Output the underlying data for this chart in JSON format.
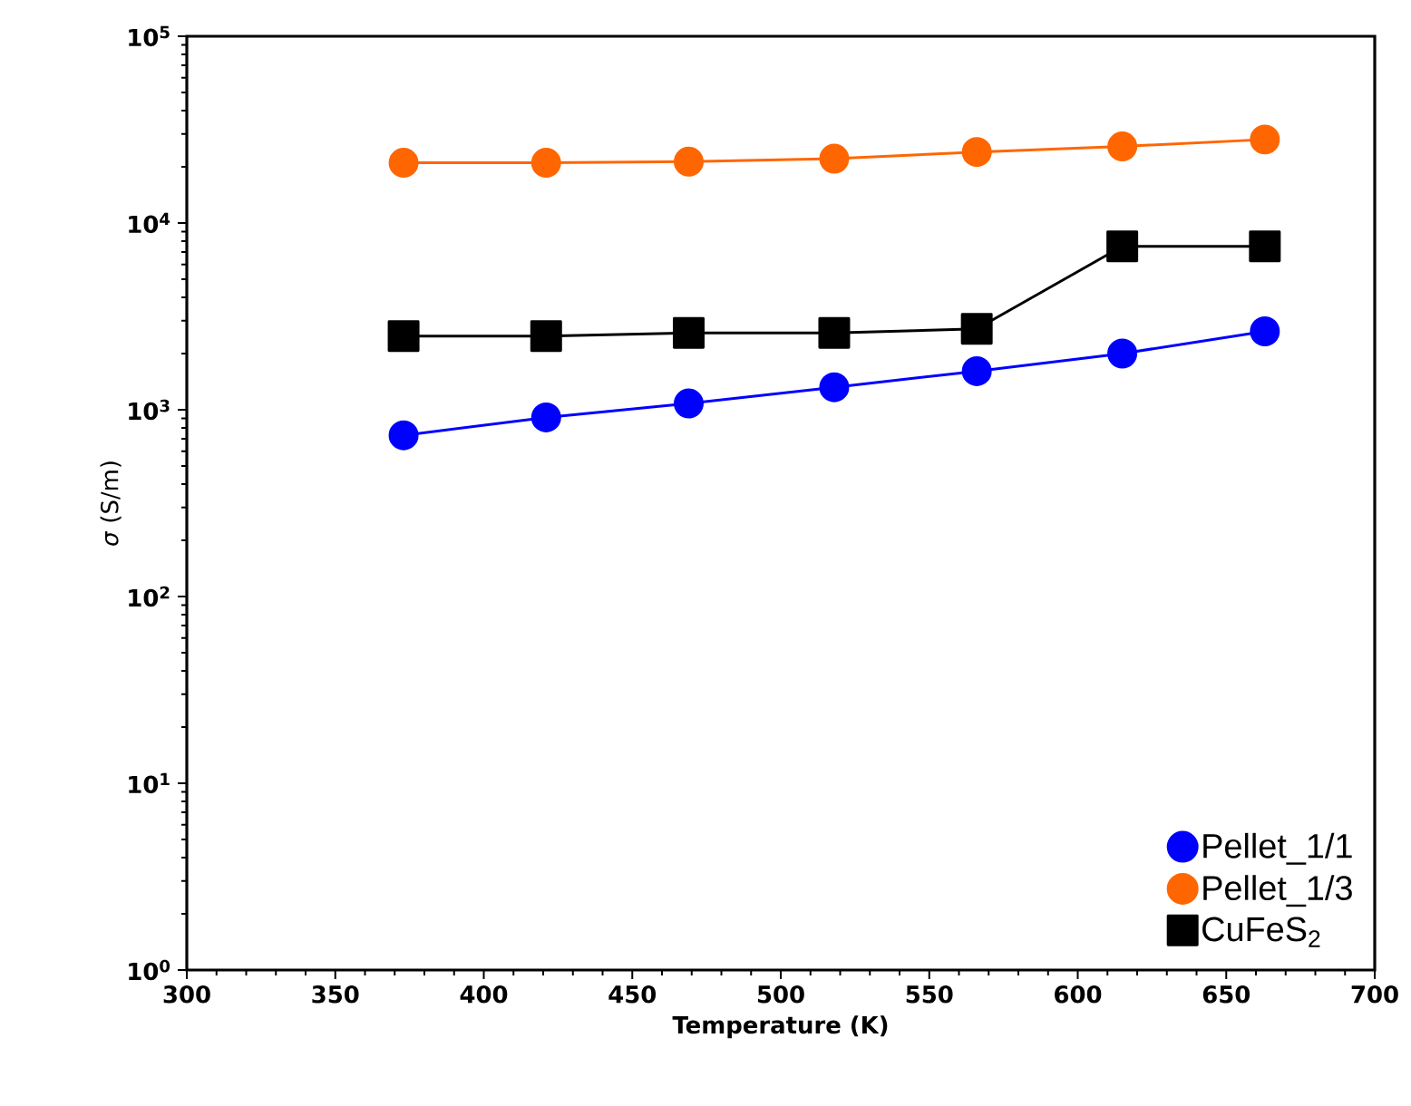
{
  "chart_data": {
    "type": "line",
    "xlabel": "Temperature (K)",
    "ylabel": "*σ* (S/m)",
    "log": "y",
    "grid": false,
    "legend": "bottom right",
    "xlim": [
      300,
      700
    ],
    "xticks": [
      300,
      350,
      400,
      450,
      500,
      550,
      600,
      650,
      700
    ],
    "ylim": [
      1,
      100000
    ],
    "yticks": [
      {
        "value": 1,
        "label": "10$^{0}$"
      },
      {
        "value": 10,
        "label": "10$^{1}$"
      },
      {
        "value": 100,
        "label": "10$^{2}$"
      },
      {
        "value": 1000,
        "label": "10$^{3}$"
      },
      {
        "value": 10000,
        "label": "10$^{4}$"
      },
      {
        "value": 100000,
        "label": "10$^{5}$"
      }
    ],
    "x": [
      373,
      421,
      469,
      518,
      566,
      615,
      663
    ],
    "series": [
      {
        "name": "Pellet_1/1",
        "color": "#0000ff",
        "marker": "circle",
        "values": [
          730,
          910,
          1080,
          1320,
          1610,
          2000,
          2630
        ]
      },
      {
        "name": "Pellet_1/3",
        "color": "#ff6600",
        "marker": "circle",
        "values": [
          21000,
          21000,
          21300,
          22100,
          24000,
          25700,
          28000
        ]
      },
      {
        "name": "CuFeS$_{2}$",
        "color": "#000000",
        "marker": "square",
        "values": [
          2480,
          2480,
          2580,
          2580,
          2710,
          7500,
          7500
        ]
      }
    ]
  }
}
